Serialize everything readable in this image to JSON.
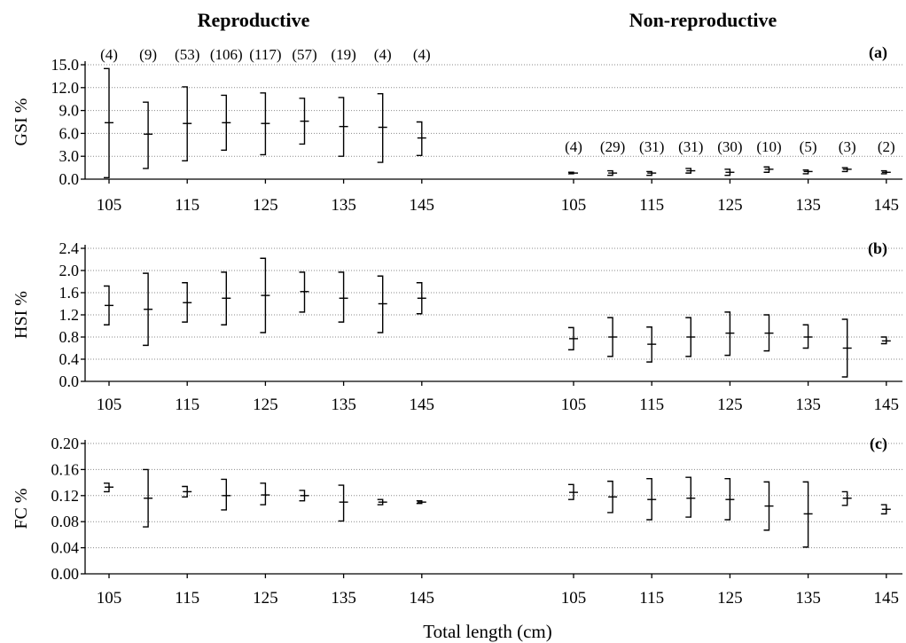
{
  "header": {
    "left": "Reproductive",
    "right": "Non-reproductive"
  },
  "xlabel": "Total length (cm)",
  "sample_sizes": {
    "reproductive": [
      "(4)",
      "(9)",
      "(53)",
      "(106)",
      "(117)",
      "(57)",
      "(19)",
      "(4)",
      "(4)"
    ],
    "non_reproductive": [
      "(4)",
      "(29)",
      "(31)",
      "(31)",
      "(30)",
      "(10)",
      "(5)",
      "(3)",
      "(2)"
    ]
  },
  "chart_data": [
    {
      "type": "errorbar",
      "panel": "(a)",
      "ylabel": "GSI %",
      "ylim": [
        0,
        15
      ],
      "yticks": [
        "0.0",
        "3.0",
        "6.0",
        "9.0",
        "12.0",
        "15.0"
      ],
      "grid": true,
      "x_tick_labels": [
        "105",
        "115",
        "125",
        "135",
        "145",
        "105",
        "115",
        "125",
        "135",
        "145"
      ],
      "series": [
        {
          "group": "reproductive",
          "x": [
            105,
            110,
            115,
            120,
            125,
            130,
            135,
            140,
            145
          ],
          "mean": [
            7.4,
            5.9,
            7.3,
            7.4,
            7.3,
            7.6,
            6.9,
            6.8,
            5.4
          ],
          "low": [
            0.2,
            1.4,
            2.4,
            3.8,
            3.2,
            4.6,
            3.0,
            2.2,
            3.1
          ],
          "high": [
            14.5,
            10.1,
            12.1,
            11.0,
            11.3,
            10.6,
            10.7,
            11.2,
            7.5
          ]
        },
        {
          "group": "non_reproductive",
          "x": [
            105,
            110,
            115,
            120,
            125,
            130,
            135,
            140,
            145
          ],
          "mean": [
            0.8,
            0.8,
            0.8,
            1.1,
            0.9,
            1.3,
            1.0,
            1.3,
            0.9
          ],
          "low": [
            0.7,
            0.5,
            0.5,
            0.8,
            0.5,
            0.9,
            0.7,
            1.0,
            0.7
          ],
          "high": [
            0.9,
            1.1,
            1.0,
            1.4,
            1.3,
            1.6,
            1.2,
            1.5,
            1.1
          ]
        }
      ]
    },
    {
      "type": "errorbar",
      "panel": "(b)",
      "ylabel": "HSI %",
      "ylim": [
        0,
        2.4
      ],
      "yticks": [
        "0.0",
        "0.4",
        "0.8",
        "1.2",
        "1.6",
        "2.0",
        "2.4"
      ],
      "grid": true,
      "x_tick_labels": [
        "105",
        "115",
        "125",
        "135",
        "145",
        "105",
        "115",
        "125",
        "135",
        "145"
      ],
      "series": [
        {
          "group": "reproductive",
          "x": [
            105,
            110,
            115,
            120,
            125,
            130,
            135,
            140,
            145
          ],
          "mean": [
            1.37,
            1.3,
            1.42,
            1.5,
            1.55,
            1.62,
            1.5,
            1.4,
            1.5
          ],
          "low": [
            1.02,
            0.65,
            1.07,
            1.02,
            0.88,
            1.25,
            1.07,
            0.88,
            1.22
          ],
          "high": [
            1.72,
            1.95,
            1.78,
            1.97,
            2.22,
            1.97,
            1.97,
            1.9,
            1.78
          ]
        },
        {
          "group": "non_reproductive",
          "x": [
            105,
            110,
            115,
            120,
            125,
            130,
            135,
            140,
            145
          ],
          "mean": [
            0.77,
            0.8,
            0.67,
            0.8,
            0.87,
            0.87,
            0.8,
            0.6,
            0.73
          ],
          "low": [
            0.57,
            0.45,
            0.35,
            0.45,
            0.47,
            0.55,
            0.6,
            0.08,
            0.68
          ],
          "high": [
            0.97,
            1.15,
            0.98,
            1.15,
            1.25,
            1.2,
            1.02,
            1.12,
            0.8
          ]
        }
      ]
    },
    {
      "type": "errorbar",
      "panel": "(c)",
      "ylabel": "FC %",
      "ylim": [
        0,
        0.2
      ],
      "yticks": [
        "0.00",
        "0.04",
        "0.08",
        "0.12",
        "0.16",
        "0.20"
      ],
      "grid": true,
      "x_tick_labels": [
        "105",
        "115",
        "125",
        "135",
        "145",
        "105",
        "115",
        "125",
        "135",
        "145"
      ],
      "series": [
        {
          "group": "reproductive",
          "x": [
            105,
            110,
            115,
            120,
            125,
            130,
            135,
            140,
            145
          ],
          "mean": [
            0.133,
            0.116,
            0.126,
            0.12,
            0.121,
            0.12,
            0.11,
            0.11,
            0.11
          ],
          "low": [
            0.126,
            0.072,
            0.118,
            0.098,
            0.106,
            0.112,
            0.081,
            0.106,
            0.108
          ],
          "high": [
            0.139,
            0.16,
            0.134,
            0.145,
            0.139,
            0.128,
            0.136,
            0.114,
            0.112
          ]
        },
        {
          "group": "non_reproductive",
          "x": [
            105,
            110,
            115,
            120,
            125,
            130,
            135,
            140,
            145
          ],
          "mean": [
            0.125,
            0.118,
            0.114,
            0.116,
            0.114,
            0.104,
            0.092,
            0.116,
            0.099
          ],
          "low": [
            0.114,
            0.094,
            0.083,
            0.087,
            0.083,
            0.067,
            0.041,
            0.105,
            0.092
          ],
          "high": [
            0.137,
            0.142,
            0.146,
            0.148,
            0.146,
            0.141,
            0.141,
            0.126,
            0.106
          ]
        }
      ]
    }
  ]
}
